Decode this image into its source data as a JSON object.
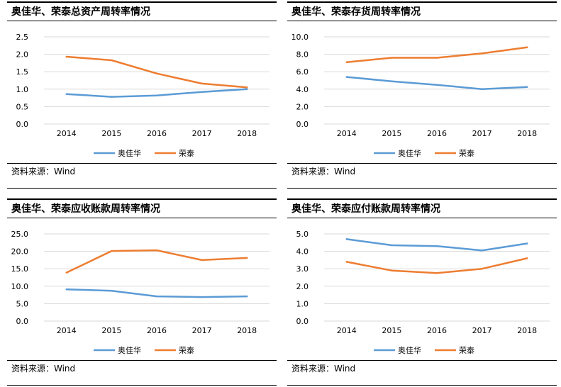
{
  "colors": {
    "aojiahua": "#5b9bd5",
    "rongtai": "#ed7d31",
    "grid": "#d9d9d9"
  },
  "source_text": "资料来源：Wind",
  "chart_data": [
    {
      "type": "line",
      "title": "奥佳华、荣泰总资产周转率情况",
      "categories": [
        "2014",
        "2015",
        "2016",
        "2017",
        "2018"
      ],
      "ylim": [
        0,
        2.5
      ],
      "yticks": [
        "0.0",
        "0.5",
        "1.0",
        "1.5",
        "2.0",
        "2.5"
      ],
      "grid": true,
      "legend": "bottom",
      "series": [
        {
          "name": "奥佳华",
          "values": [
            0.86,
            0.78,
            0.82,
            0.92,
            1.0
          ]
        },
        {
          "name": "荣泰",
          "values": [
            1.93,
            1.83,
            1.45,
            1.16,
            1.05
          ]
        }
      ],
      "source": "资料来源：Wind"
    },
    {
      "type": "line",
      "title": "奥佳华、荣泰存货周转率情况",
      "categories": [
        "2014",
        "2015",
        "2016",
        "2017",
        "2018"
      ],
      "ylim": [
        0,
        10
      ],
      "yticks": [
        "0.0",
        "2.0",
        "4.0",
        "6.0",
        "8.0",
        "10.0"
      ],
      "grid": true,
      "legend": "bottom",
      "series": [
        {
          "name": "奥佳华",
          "values": [
            5.4,
            4.9,
            4.5,
            4.0,
            4.25
          ]
        },
        {
          "name": "荣泰",
          "values": [
            7.1,
            7.6,
            7.6,
            8.1,
            8.8
          ]
        }
      ],
      "source": "资料来源：Wind"
    },
    {
      "type": "line",
      "title": "奥佳华、荣泰应收账款周转率情况",
      "categories": [
        "2014",
        "2015",
        "2016",
        "2017",
        "2018"
      ],
      "ylim": [
        0,
        25
      ],
      "yticks": [
        "0.0",
        "5.0",
        "10.0",
        "15.0",
        "20.0",
        "25.0"
      ],
      "grid": true,
      "legend": "bottom",
      "series": [
        {
          "name": "奥佳华",
          "values": [
            9.1,
            8.7,
            7.1,
            6.9,
            7.1
          ]
        },
        {
          "name": "荣泰",
          "values": [
            13.9,
            20.1,
            20.3,
            17.5,
            18.1
          ]
        }
      ],
      "source": "资料来源：Wind"
    },
    {
      "type": "line",
      "title": "奥佳华、荣泰应付账款周转率情况",
      "categories": [
        "2014",
        "2015",
        "2016",
        "2017",
        "2018"
      ],
      "ylim": [
        0,
        5
      ],
      "yticks": [
        "0.0",
        "1.0",
        "2.0",
        "3.0",
        "4.0",
        "5.0"
      ],
      "grid": true,
      "legend": "bottom",
      "series": [
        {
          "name": "奥佳华",
          "values": [
            4.7,
            4.35,
            4.3,
            4.05,
            4.45
          ]
        },
        {
          "name": "荣泰",
          "values": [
            3.4,
            2.9,
            2.75,
            3.0,
            3.6
          ]
        }
      ],
      "source": "资料来源：Wind"
    }
  ]
}
